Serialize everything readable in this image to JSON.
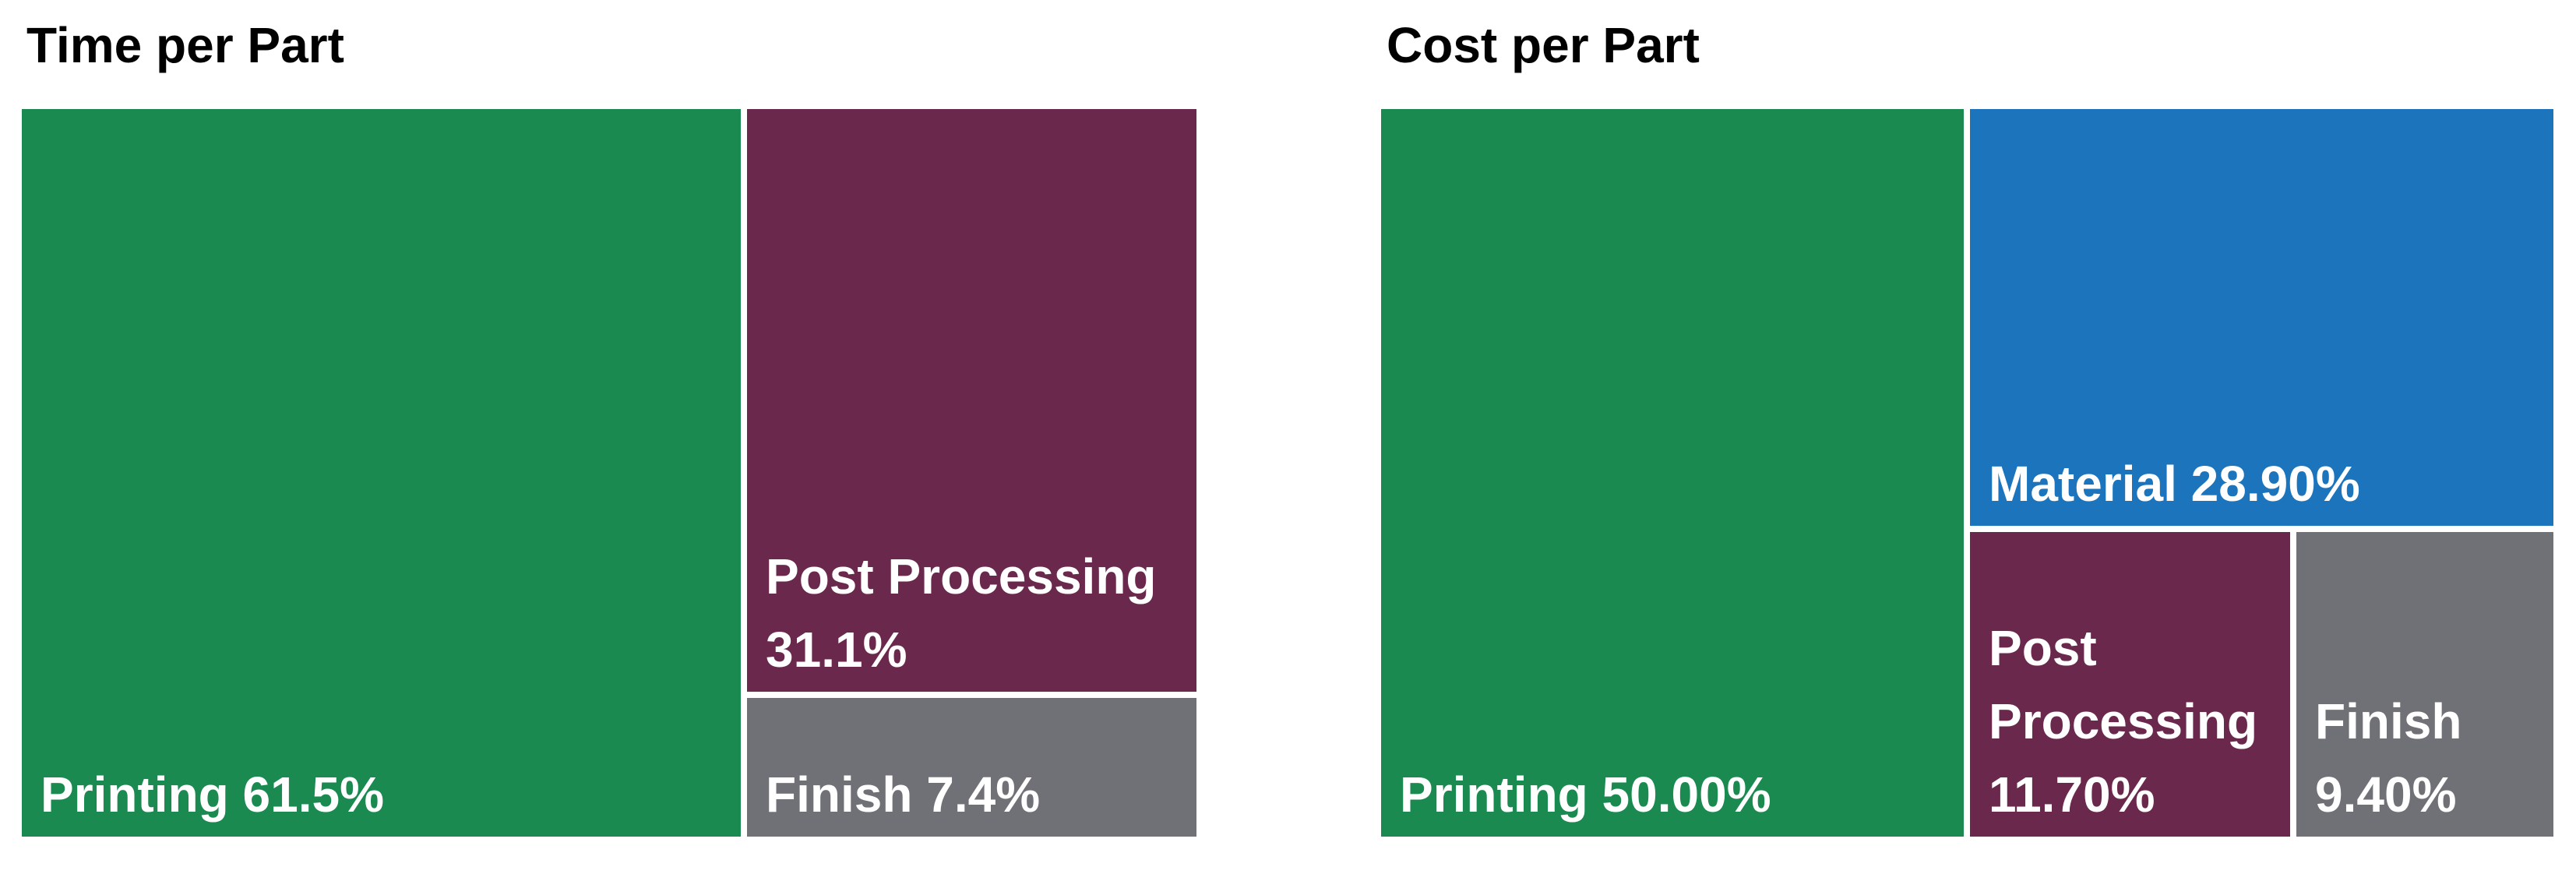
{
  "chart_data": [
    {
      "type": "treemap",
      "title": "Time per Part",
      "items": [
        {
          "label": "Printing",
          "value": 61.5,
          "value_label": "61.5%",
          "color": "#1A8A50"
        },
        {
          "label": "Post Processing",
          "value": 31.1,
          "value_label": "31.1%",
          "color": "#6A284C"
        },
        {
          "label": "Finish",
          "value": 7.4,
          "value_label": "7.4%",
          "color": "#707177"
        }
      ]
    },
    {
      "type": "treemap",
      "title": "Cost per Part",
      "items": [
        {
          "label": "Printing",
          "value": 50.0,
          "value_label": "50.00%",
          "color": "#1A8A50"
        },
        {
          "label": "Material",
          "value": 28.9,
          "value_label": "28.90%",
          "color": "#1C75BC"
        },
        {
          "label": "Post Processing",
          "value": 11.7,
          "value_label": "11.70%",
          "color": "#6A284C"
        },
        {
          "label": "Finish",
          "value": 9.4,
          "value_label": "9.40%",
          "color": "#707177"
        }
      ]
    }
  ]
}
